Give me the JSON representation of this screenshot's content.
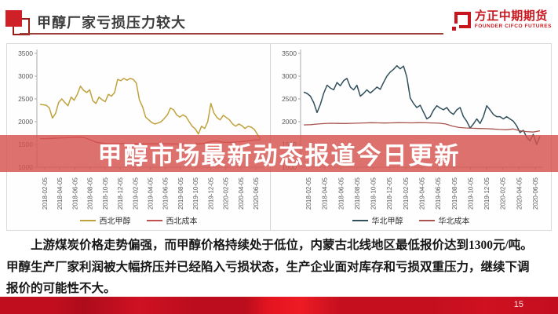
{
  "slide": {
    "title": "甲醇厂家亏损压力较大",
    "overlay_text": "甲醇市场最新动态报道今日更新",
    "page_number": "15",
    "logo": {
      "name": "方正中期期货",
      "subtitle": "FOUNDER CIFCO FUTURES",
      "brand_color": "#C9161E"
    },
    "paragraph": {
      "line1": "上游煤炭价格走势偏强，而甲醇价格持续处于低位，内蒙古北线地区最低报价达到1300元/吨。",
      "line2": "甲醇生产厂家利润被大幅挤压并已经陷入亏损状态，生产企业面对库存和亏损双重压力，继续下调",
      "line3": "报价的可能性不大。"
    }
  },
  "colors": {
    "accent_red": "#CE2026",
    "banner_red": "rgba(214,82,78,0.82)",
    "footer_red": "#C30E1F",
    "title_gray": "#3D3D3D",
    "axis_gray": "#ABABAB"
  },
  "chart_data": [
    {
      "type": "line",
      "title": "",
      "ylim": [
        1000,
        3500
      ],
      "yticks": [
        1000,
        1500,
        2000,
        2500,
        3000,
        3500
      ],
      "grid": false,
      "legend_position": "bottom",
      "x_tick_labels": [
        "2018-02-05",
        "2018-04-05",
        "2018-06-05",
        "2018-08-05",
        "2018-10-05",
        "2018-12-05",
        "2019-02-05",
        "2019-04-05",
        "2019-06-05",
        "2019-08-05",
        "2019-10-05",
        "2019-12-05",
        "2020-02-05",
        "2020-04-05",
        "2020-06-05"
      ],
      "series": [
        {
          "name": "西北甲醇",
          "color": "#C0A23C",
          "values": [
            2380,
            2370,
            2360,
            2300,
            2080,
            2180,
            2420,
            2500,
            2420,
            2350,
            2540,
            2470,
            2600,
            2780,
            2690,
            2640,
            2700,
            2460,
            2400,
            2540,
            2480,
            2440,
            2600,
            2560,
            2640,
            2930,
            2900,
            2950,
            2910,
            2950,
            2930,
            2850,
            2480,
            2330,
            2100,
            2040,
            1980,
            1950,
            1970,
            2000,
            2070,
            2150,
            2300,
            2260,
            2150,
            2100,
            2150,
            2110,
            2000,
            1900,
            1840,
            1730,
            1900,
            1850,
            2000,
            2400,
            2190,
            2090,
            2040,
            2140,
            2090,
            2040,
            1950,
            1900,
            1950,
            1910,
            1850,
            1900,
            1880,
            1830,
            1720,
            1620
          ]
        },
        {
          "name": "西北成本",
          "color": "#C0504D",
          "values": [
            1630,
            1628,
            1634,
            1640,
            1646,
            1652,
            1660,
            1650,
            1600,
            1545,
            1525,
            1518,
            1515,
            1520,
            1524,
            1520,
            1516,
            1512,
            1514,
            1518,
            1514,
            1510,
            1508,
            1512,
            1516,
            1512,
            1520,
            1560,
            1575,
            1550,
            1545,
            1552,
            1560,
            1580,
            1600,
            1602
          ]
        }
      ]
    },
    {
      "type": "line",
      "title": "",
      "ylim": [
        1000,
        3500
      ],
      "yticks": [
        1000,
        1500,
        2000,
        2500,
        3000,
        3500
      ],
      "grid": false,
      "legend_position": "bottom",
      "x_tick_labels": [
        "2018-02-05",
        "2018-04-05",
        "2018-06-05",
        "2018-08-05",
        "2018-10-05",
        "2018-12-05",
        "2019-02-05",
        "2019-04-05",
        "2019-06-05",
        "2019-08-05",
        "2019-10-05",
        "2019-12-05",
        "2020-02-05",
        "2020-04-05",
        "2020-06-05"
      ],
      "series": [
        {
          "name": "华北甲醇",
          "color": "#31505C",
          "values": [
            2650,
            2620,
            2560,
            2420,
            2200,
            2380,
            2620,
            2800,
            2740,
            2700,
            2860,
            2790,
            2900,
            2950,
            2760,
            2700,
            2800,
            2560,
            2620,
            2700,
            2630,
            2690,
            2760,
            2710,
            2860,
            3000,
            3090,
            3150,
            3230,
            3160,
            3220,
            2980,
            2520,
            2400,
            2310,
            2360,
            2210,
            2060,
            2110,
            2250,
            2350,
            2300,
            2260,
            2310,
            2210,
            2160,
            2260,
            2310,
            2110,
            2010,
            1860,
            1950,
            2060,
            1960,
            2110,
            2350,
            2260,
            2160,
            2110,
            2110,
            2060,
            2110,
            2060,
            2010,
            1910,
            1760,
            1810,
            1660,
            1580,
            1720,
            1500,
            1680
          ]
        },
        {
          "name": "华北成本",
          "color": "#A8544F",
          "values": [
            1930,
            1934,
            1948,
            1958,
            1966,
            1962,
            1960,
            1964,
            1968,
            1972,
            1978,
            1974,
            1970,
            1974,
            1978,
            1976,
            1974,
            1978,
            1976,
            1972,
            1968,
            1950,
            1905,
            1872,
            1862,
            1856,
            1850,
            1846,
            1840,
            1830,
            1822,
            1840,
            1802,
            1782,
            1772,
            1800
          ]
        }
      ]
    }
  ]
}
